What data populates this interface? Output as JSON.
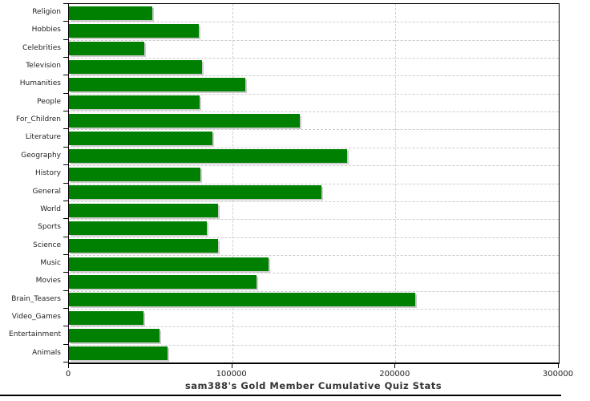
{
  "title": "sam388's Gold Member Cumulative Quiz Stats",
  "colors": {
    "bar": "#008000",
    "bar_shadow": "#cccccc",
    "grid": "#cccccc",
    "axis": "#000000",
    "text": "#222222",
    "title_text": "#333333",
    "background": "#ffffff"
  },
  "chart_data": {
    "type": "bar",
    "orientation": "horizontal",
    "title": "sam388's Gold Member Cumulative Quiz Stats",
    "xlabel": "",
    "ylabel": "",
    "xlim": [
      0,
      300000
    ],
    "x_ticks": [
      0,
      100000,
      200000,
      300000
    ],
    "x_tick_labels": [
      "0",
      "100000",
      "200000",
      "300000"
    ],
    "grid": "dashed",
    "legend": "none",
    "categories": [
      "Religion",
      "Hobbies",
      "Celebrities",
      "Television",
      "Humanities",
      "People",
      "For_Children",
      "Literature",
      "Geography",
      "History",
      "General",
      "World",
      "Sports",
      "Science",
      "Music",
      "Movies",
      "Brain_Teasers",
      "Video_Games",
      "Entertainment",
      "Animals"
    ],
    "values": [
      51000,
      79500,
      46000,
      81500,
      108000,
      80000,
      141500,
      88000,
      170500,
      80500,
      154500,
      91500,
      84500,
      91500,
      122500,
      115000,
      212000,
      45500,
      55500,
      60500
    ]
  }
}
